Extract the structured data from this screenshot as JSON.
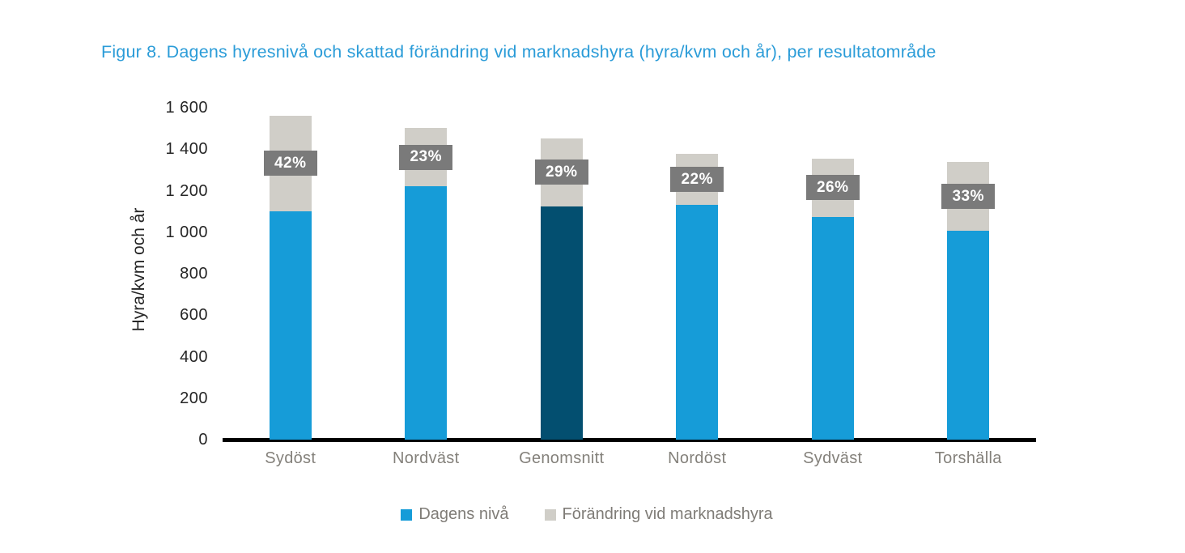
{
  "title": "Figur 8. Dagens hyresnivå och skattad förändring vid marknadshyra (hyra/kvm och år), per resultatområde",
  "chart_data": {
    "type": "bar",
    "stacked": true,
    "title": "Figur 8. Dagens hyresnivå och skattad förändring vid marknadshyra (hyra/kvm och år), per resultatområde",
    "categories": [
      "Sydöst",
      "Nordväst",
      "Genomsnitt",
      "Nordöst",
      "Sydväst",
      "Torshälla"
    ],
    "series": [
      {
        "name": "Dagens nivå",
        "values": [
          1100,
          1220,
          1125,
          1130,
          1075,
          1005
        ],
        "color": "#169CD8"
      },
      {
        "name": "Förändring vid marknadshyra",
        "values": [
          462,
          281,
          326,
          249,
          280,
          332
        ],
        "color": "#D0CEC8"
      }
    ],
    "bar_labels": [
      "42%",
      "23%",
      "29%",
      "22%",
      "26%",
      "33%"
    ],
    "totals": [
      1562,
      1501,
      1451,
      1379,
      1355,
      1337
    ],
    "highlight_category": "Genomsnitt",
    "highlight_color": "#034F70",
    "ylabel": "Hyra/kvm och år",
    "xlabel": "",
    "ylim": [
      0,
      1600
    ],
    "ytick_values": [
      0,
      200,
      400,
      600,
      800,
      1000,
      1200,
      1400,
      1600
    ],
    "ytick_labels": [
      "0",
      "200",
      "400",
      "600",
      "800",
      "1 000",
      "1 200",
      "1 400",
      "1 600"
    ],
    "grid": false,
    "legend_position": "bottom",
    "label_box_color": "#7A7A7A",
    "label_text_color": "#FFFFFF",
    "axis_color": "#000000",
    "title_color": "#2B9CD8"
  }
}
